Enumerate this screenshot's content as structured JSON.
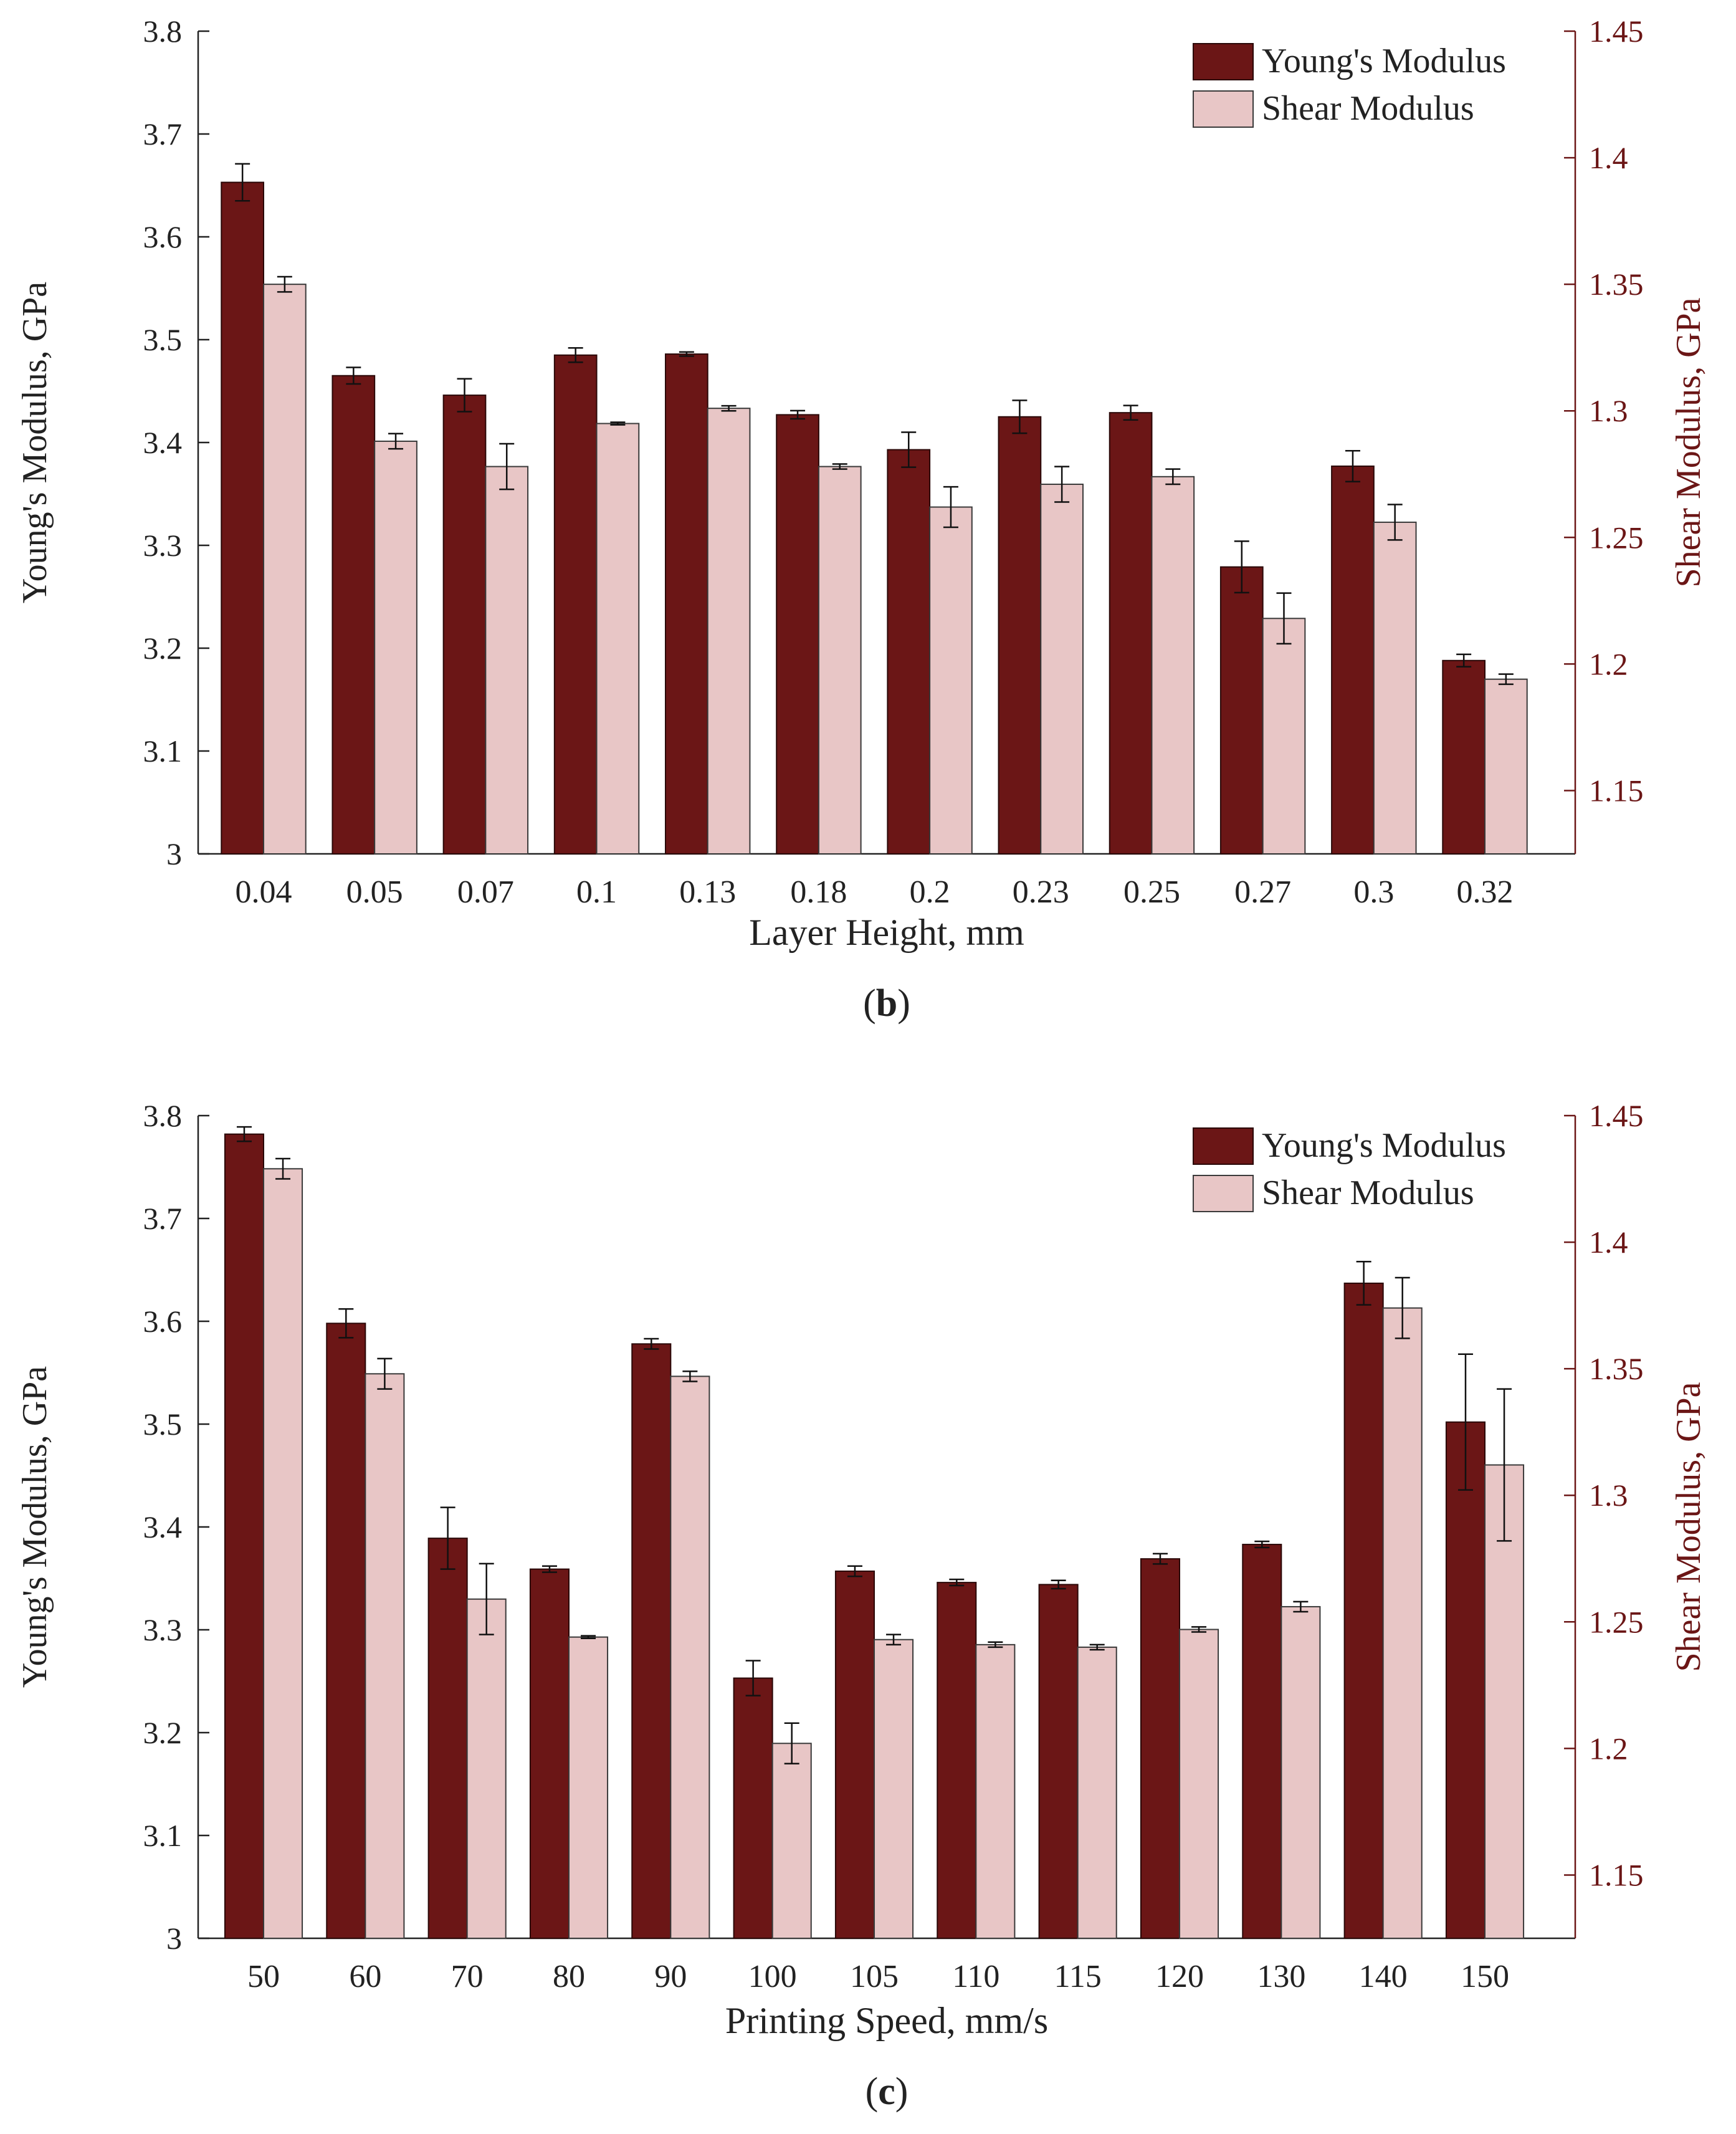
{
  "colors": {
    "young": "#6b1616",
    "shear": "#e8c6c6",
    "axis_right": "#6b1616",
    "axis": "#222222"
  },
  "chart_data": [
    {
      "type": "bar",
      "panel_label": "(b)",
      "panel_letter": "b",
      "xlabel": "Layer Height, mm",
      "ylabel": "Young's Modulus, GPa",
      "ylabel_right": "Shear Modulus, GPa",
      "ylim": [
        3.0,
        3.8
      ],
      "ylim_right": [
        1.125,
        1.45
      ],
      "yticks": [
        "3",
        "3.1",
        "3.2",
        "3.3",
        "3.4",
        "3.5",
        "3.6",
        "3.7",
        "3.8"
      ],
      "yticks_right": [
        "1.15",
        "1.2",
        "1.25",
        "1.3",
        "1.35",
        "1.4",
        "1.45"
      ],
      "legend": [
        "Young's Modulus",
        "Shear Modulus"
      ],
      "legend_position": "top-right",
      "categories": [
        "0.04",
        "0.05",
        "0.07",
        "0.1",
        "0.13",
        "0.18",
        "0.2",
        "0.23",
        "0.25",
        "0.27",
        "0.3",
        "0.32"
      ],
      "series": [
        {
          "name": "Young's Modulus",
          "axis": "left",
          "values": [
            3.653,
            3.465,
            3.446,
            3.485,
            3.486,
            3.427,
            3.393,
            3.425,
            3.429,
            3.279,
            3.377,
            3.188
          ],
          "errors": [
            0.018,
            0.008,
            0.016,
            0.007,
            0.002,
            0.004,
            0.017,
            0.016,
            0.007,
            0.025,
            0.015,
            0.006
          ]
        },
        {
          "name": "Shear Modulus",
          "axis": "right",
          "values": [
            1.35,
            1.288,
            1.278,
            1.295,
            1.301,
            1.278,
            1.262,
            1.271,
            1.274,
            1.218,
            1.256,
            1.194
          ],
          "errors": [
            0.003,
            0.003,
            0.009,
            0.0005,
            0.001,
            0.001,
            0.008,
            0.007,
            0.003,
            0.01,
            0.007,
            0.002
          ]
        }
      ]
    },
    {
      "type": "bar",
      "panel_label": "(c)",
      "panel_letter": "c",
      "xlabel": "Printing Speed, mm/s",
      "ylabel": "Young's Modulus, GPa",
      "ylabel_right": "Shear Modulus, GPa",
      "ylim": [
        3.0,
        3.8
      ],
      "ylim_right": [
        1.125,
        1.45
      ],
      "yticks": [
        "3",
        "3.1",
        "3.2",
        "3.3",
        "3.4",
        "3.5",
        "3.6",
        "3.7",
        "3.8"
      ],
      "yticks_right": [
        "1.15",
        "1.2",
        "1.25",
        "1.3",
        "1.35",
        "1.4",
        "1.45"
      ],
      "legend": [
        "Young's Modulus",
        "Shear Modulus"
      ],
      "legend_position": "top-right",
      "categories": [
        "50",
        "60",
        "70",
        "80",
        "90",
        "100",
        "105",
        "110",
        "115",
        "120",
        "130",
        "140",
        "150"
      ],
      "series": [
        {
          "name": "Young's Modulus",
          "axis": "left",
          "values": [
            3.782,
            3.598,
            3.389,
            3.359,
            3.578,
            3.253,
            3.357,
            3.346,
            3.344,
            3.369,
            3.383,
            3.637,
            3.502
          ],
          "errors": [
            0.007,
            0.014,
            0.03,
            0.003,
            0.005,
            0.017,
            0.005,
            0.003,
            0.004,
            0.005,
            0.003,
            0.021,
            0.066
          ]
        },
        {
          "name": "Shear Modulus",
          "axis": "right",
          "values": [
            1.429,
            1.348,
            1.259,
            1.244,
            1.347,
            1.202,
            1.243,
            1.241,
            1.24,
            1.247,
            1.256,
            1.374,
            1.312
          ],
          "errors": [
            0.004,
            0.006,
            0.014,
            0.0005,
            0.002,
            0.008,
            0.002,
            0.001,
            0.001,
            0.001,
            0.002,
            0.012,
            0.03
          ]
        }
      ]
    }
  ]
}
